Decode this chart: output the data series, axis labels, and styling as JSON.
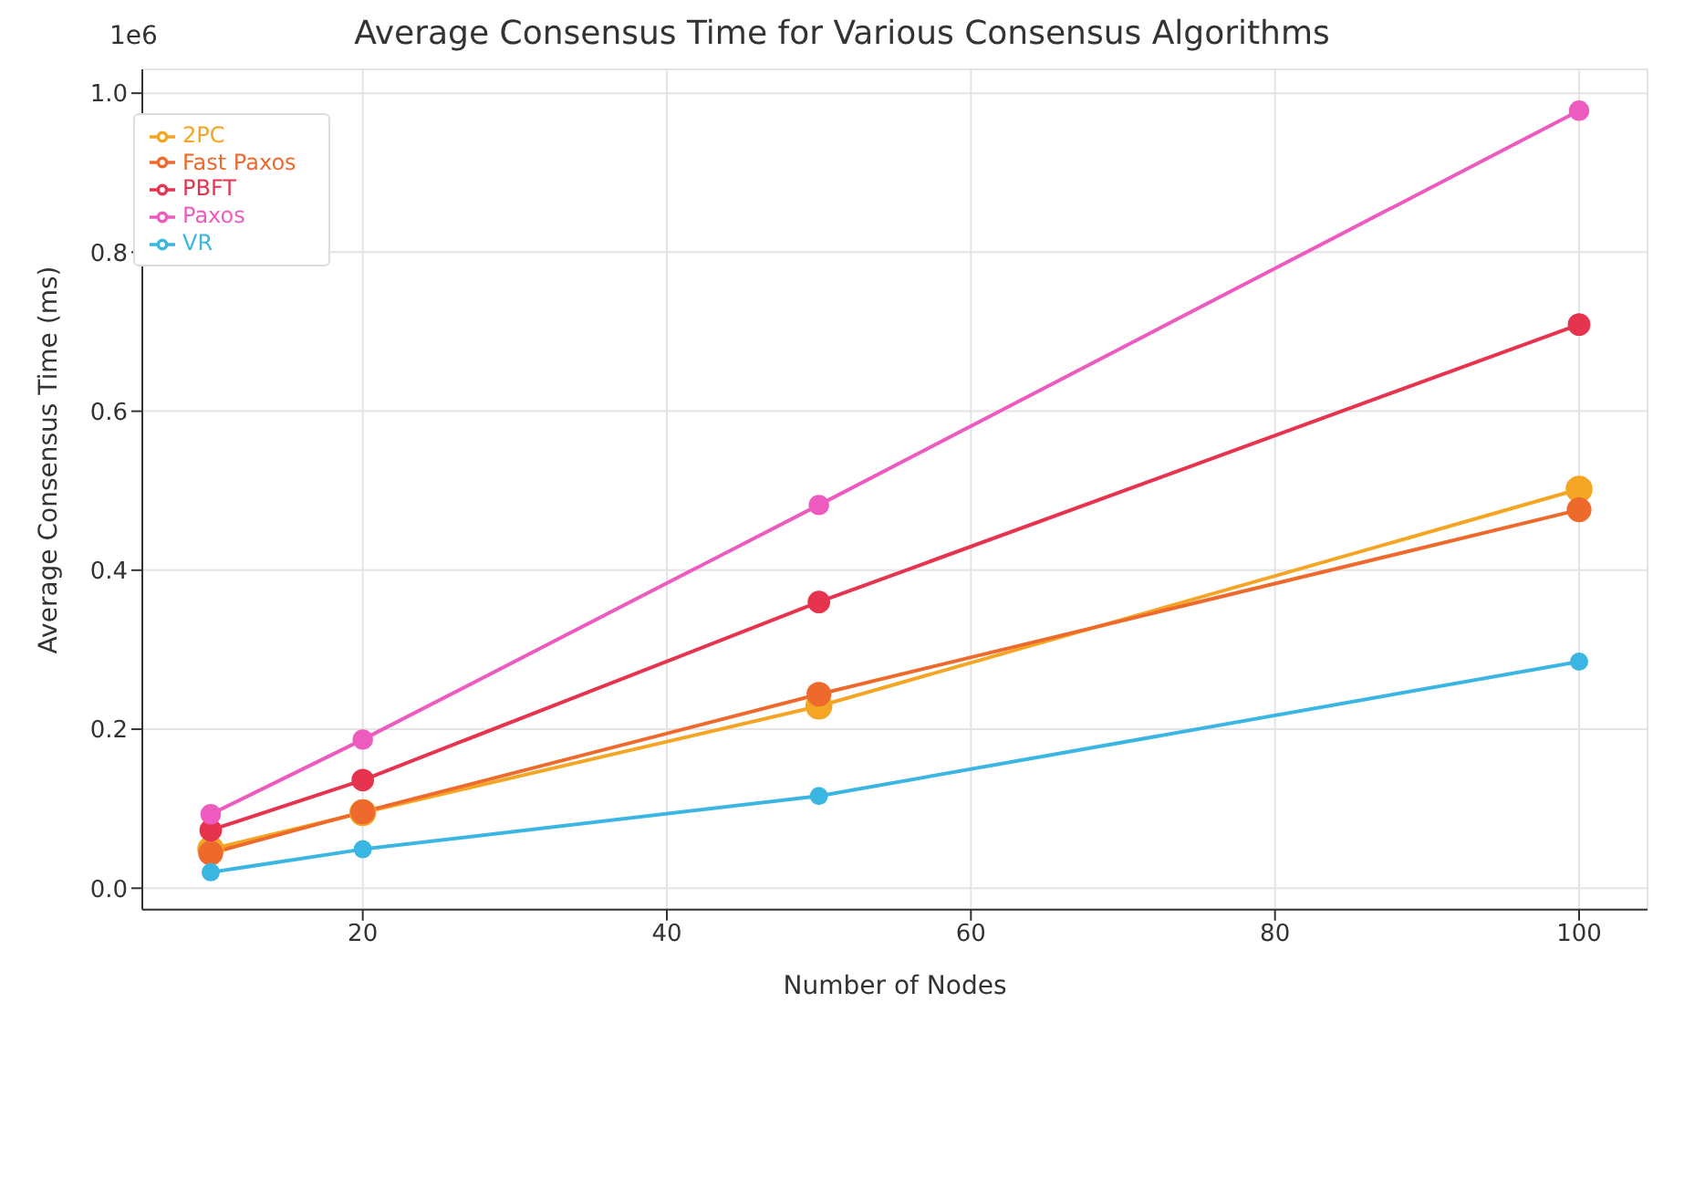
{
  "chart_data": {
    "type": "line",
    "title": "Average Consensus Time for Various Consensus Algorithms",
    "xlabel": "Number of Nodes",
    "ylabel": "Average Consensus Time (ms)",
    "annotations": [
      "1e6"
    ],
    "x": [
      10,
      20,
      50,
      100
    ],
    "series": [
      {
        "name": "2PC",
        "color": "#f5a524",
        "values": [
          0.049,
          0.095,
          0.229,
          0.502
        ]
      },
      {
        "name": "Fast Paxos",
        "color": "#ee6a2c",
        "values": [
          0.044,
          0.096,
          0.244,
          0.476
        ]
      },
      {
        "name": "PBFT",
        "color": "#e6334e",
        "values": [
          0.073,
          0.136,
          0.36,
          0.709
        ]
      },
      {
        "name": "Paxos",
        "color": "#ee5bbf",
        "values": [
          0.093,
          0.187,
          0.482,
          0.978
        ]
      },
      {
        "name": "VR",
        "color": "#3bb6e2",
        "values": [
          0.02,
          0.049,
          0.116,
          0.285
        ]
      }
    ],
    "xlim": [
      5.5,
      104.5
    ],
    "xticks": [
      20,
      40,
      60,
      80,
      100
    ],
    "ylim": [
      -0.027,
      1.03
    ],
    "yticks": [
      {
        "value": 0,
        "label": "0.0"
      },
      0.2,
      0.4,
      0.6,
      0.8,
      {
        "value": 1,
        "label": "1.0"
      }
    ],
    "grid": true,
    "legend": "top left",
    "marker": "circle",
    "line_style": "solid"
  }
}
